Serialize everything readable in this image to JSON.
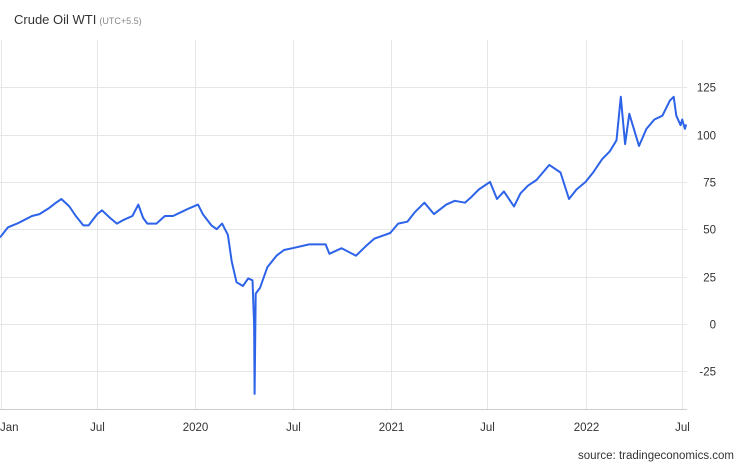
{
  "chart_data": {
    "type": "line",
    "title": "Crude Oil WTI",
    "subtitle": "(UTC+5.5)",
    "source": "source: tradingeconomics.com",
    "line_color": "#2d63e8",
    "grid": true,
    "ylim": [
      -45,
      150
    ],
    "yticks": [
      {
        "value": 125,
        "label": "125"
      },
      {
        "value": 100,
        "label": "100"
      },
      {
        "value": 75,
        "label": "75"
      },
      {
        "value": 50,
        "label": "50"
      },
      {
        "value": 25,
        "label": "25"
      },
      {
        "value": 0,
        "label": "0"
      },
      {
        "value": -25,
        "label": "-25"
      }
    ],
    "xlim": [
      "2018-12-31",
      "2022-07-10"
    ],
    "xticks": [
      {
        "date": "2019-01-01",
        "label": "Jan"
      },
      {
        "date": "2019-07-01",
        "label": "Jul"
      },
      {
        "date": "2020-01-01",
        "label": "2020"
      },
      {
        "date": "2020-07-01",
        "label": "Jul"
      },
      {
        "date": "2021-01-01",
        "label": "2021"
      },
      {
        "date": "2021-07-01",
        "label": "Jul"
      },
      {
        "date": "2022-01-01",
        "label": "2022"
      },
      {
        "date": "2022-07-01",
        "label": "Jul"
      }
    ],
    "series": [
      {
        "x": [
          "2019-01-01",
          "2019-01-15",
          "2019-02-01",
          "2019-02-15",
          "2019-03-01",
          "2019-03-15",
          "2019-04-01",
          "2019-04-15",
          "2019-04-25",
          "2019-05-10",
          "2019-05-22",
          "2019-06-05",
          "2019-06-15",
          "2019-07-01",
          "2019-07-10",
          "2019-07-25",
          "2019-08-07",
          "2019-08-20",
          "2019-09-05",
          "2019-09-16",
          "2019-09-25",
          "2019-10-03",
          "2019-10-20",
          "2019-11-05",
          "2019-11-20",
          "2019-12-05",
          "2019-12-20",
          "2020-01-06",
          "2020-01-15",
          "2020-01-31",
          "2020-02-10",
          "2020-02-20",
          "2020-03-02",
          "2020-03-09",
          "2020-03-18",
          "2020-03-30",
          "2020-04-09",
          "2020-04-17",
          "2020-04-20",
          "2020-04-21",
          "2020-04-23",
          "2020-05-01",
          "2020-05-15",
          "2020-06-01",
          "2020-06-15",
          "2020-07-01",
          "2020-08-01",
          "2020-09-01",
          "2020-09-08",
          "2020-10-01",
          "2020-10-28",
          "2020-11-15",
          "2020-12-01",
          "2020-12-31",
          "2021-01-15",
          "2021-02-01",
          "2021-02-15",
          "2021-03-05",
          "2021-03-23",
          "2021-04-15",
          "2021-05-01",
          "2021-05-20",
          "2021-06-01",
          "2021-06-15",
          "2021-07-06",
          "2021-07-19",
          "2021-08-01",
          "2021-08-20",
          "2021-09-01",
          "2021-09-15",
          "2021-10-01",
          "2021-10-25",
          "2021-11-15",
          "2021-12-01",
          "2021-12-15",
          "2022-01-01",
          "2022-01-15",
          "2022-02-01",
          "2022-02-15",
          "2022-02-28",
          "2022-03-08",
          "2022-03-16",
          "2022-03-24",
          "2022-04-11",
          "2022-04-25",
          "2022-05-10",
          "2022-05-25",
          "2022-06-08",
          "2022-06-15",
          "2022-06-20",
          "2022-06-28",
          "2022-07-01",
          "2022-07-06",
          "2022-07-08"
        ],
        "y": [
          46,
          51,
          53,
          55,
          57,
          58,
          61,
          64,
          66,
          62,
          57,
          52,
          52,
          58,
          60,
          56,
          53,
          55,
          57,
          63,
          56,
          53,
          53,
          57,
          57,
          59,
          61,
          63,
          58,
          52,
          50,
          53,
          47,
          33,
          22,
          20,
          24,
          23,
          0,
          -37,
          16,
          19,
          30,
          36,
          39,
          40,
          42,
          42,
          37,
          40,
          36,
          41,
          45,
          48,
          53,
          54,
          59,
          64,
          58,
          63,
          65,
          64,
          67,
          71,
          75,
          66,
          70,
          62,
          69,
          73,
          76,
          84,
          80,
          66,
          71,
          75,
          80,
          87,
          91,
          97,
          120,
          95,
          111,
          94,
          103,
          108,
          110,
          118,
          120,
          110,
          105,
          108,
          103,
          105
        ]
      }
    ]
  }
}
